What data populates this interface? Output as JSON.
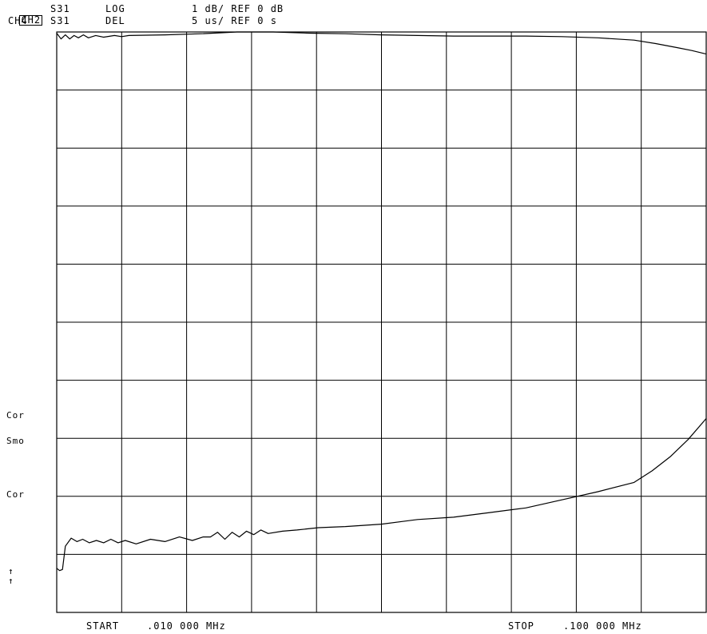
{
  "header": {
    "rows": [
      {
        "channel": "CH2",
        "active": true,
        "param": "S31",
        "format": "LOG",
        "scale": "1 dB/ REF 0 dB"
      },
      {
        "channel": "CH4",
        "active": false,
        "param": "S31",
        "format": "DEL",
        "scale": "5 us/ REF 0 s"
      }
    ]
  },
  "annotations": {
    "cor_upper": "Cor",
    "smo": "Smo",
    "cor_lower": "Cor",
    "arrow_1": "↑",
    "arrow_2": "↑"
  },
  "footer": {
    "start_label": "START",
    "start_value": ".010 000 MHz",
    "stop_label": "STOP",
    "stop_value": ".100 000 MHz"
  },
  "chart_data": {
    "type": "line",
    "grid": true,
    "grid_divisions": {
      "x": 10,
      "y": 10
    },
    "x_range": [
      0.01,
      0.1
    ],
    "x_unit": "MHz",
    "series": [
      {
        "channel": "CH2",
        "param": "S31",
        "format": "LOG",
        "scale_per_div": 1,
        "unit": "dB",
        "ref": 0,
        "x": [
          0.01,
          0.0106,
          0.0112,
          0.0118,
          0.0124,
          0.013,
          0.0137,
          0.0144,
          0.0154,
          0.0165,
          0.018,
          0.019,
          0.02,
          0.025,
          0.03,
          0.035,
          0.04,
          0.045,
          0.05,
          0.055,
          0.06,
          0.065,
          0.07,
          0.075,
          0.08,
          0.085,
          0.09,
          0.093,
          0.096,
          0.098,
          0.1
        ],
        "y": [
          -0.02,
          -0.12,
          -0.05,
          -0.12,
          -0.06,
          -0.1,
          -0.05,
          -0.1,
          -0.06,
          -0.09,
          -0.06,
          -0.08,
          -0.06,
          -0.05,
          -0.03,
          0.0,
          0.0,
          -0.02,
          -0.03,
          -0.05,
          -0.06,
          -0.07,
          -0.07,
          -0.07,
          -0.08,
          -0.1,
          -0.14,
          -0.2,
          -0.27,
          -0.32,
          -0.38
        ]
      },
      {
        "channel": "CH4",
        "param": "S31",
        "format": "DEL",
        "scale_per_div": 5,
        "unit": "us",
        "ref": 0,
        "x": [
          0.01,
          0.0104,
          0.0108,
          0.0112,
          0.012,
          0.0128,
          0.0136,
          0.0145,
          0.0155,
          0.0165,
          0.0175,
          0.0185,
          0.0195,
          0.021,
          0.023,
          0.025,
          0.027,
          0.0288,
          0.0303,
          0.0313,
          0.0323,
          0.0333,
          0.0343,
          0.0353,
          0.0363,
          0.0373,
          0.0383,
          0.0393,
          0.0413,
          0.0433,
          0.0463,
          0.05,
          0.055,
          0.06,
          0.065,
          0.07,
          0.075,
          0.08,
          0.085,
          0.09,
          0.0925,
          0.095,
          0.0975,
          0.1
        ],
        "y": [
          -46.2,
          -46.4,
          -46.3,
          -44.3,
          -43.6,
          -43.9,
          -43.7,
          -44.0,
          -43.8,
          -44.0,
          -43.7,
          -44.0,
          -43.8,
          -44.1,
          -43.7,
          -43.9,
          -43.5,
          -43.8,
          -43.5,
          -43.5,
          -43.1,
          -43.7,
          -43.1,
          -43.5,
          -43.0,
          -43.3,
          -42.9,
          -43.2,
          -43.0,
          -42.9,
          -42.7,
          -42.6,
          -42.4,
          -42.0,
          -41.8,
          -41.4,
          -41.0,
          -40.3,
          -39.6,
          -38.8,
          -37.8,
          -36.6,
          -35.1,
          -33.3
        ]
      }
    ]
  }
}
